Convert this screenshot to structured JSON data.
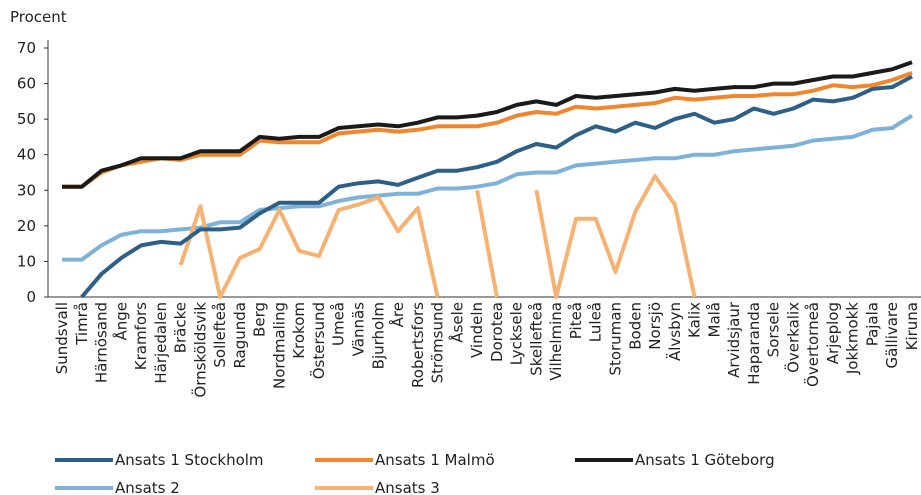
{
  "chart_data": {
    "type": "line",
    "y_label": "Procent",
    "categories": [
      "Sundsvall",
      "Timrå",
      "Härnösand",
      "Ånge",
      "Kramfors",
      "Härjedalen",
      "Bräcke",
      "Örnsköldsvik",
      "Sollefteå",
      "Ragunda",
      "Berg",
      "Nordmaling",
      "Krokom",
      "Östersund",
      "Umeå",
      "Vännäs",
      "Bjurholm",
      "Åre",
      "Robertsfors",
      "Strömsund",
      "Åsele",
      "Vindeln",
      "Dorotea",
      "Lycksele",
      "Skellefteå",
      "Vilhelmina",
      "Piteå",
      "Luleå",
      "Storuman",
      "Boden",
      "Norsjö",
      "Älvsbyn",
      "Kalix",
      "Malå",
      "Arvidsjaur",
      "Haparanda",
      "Sorsele",
      "Överkalix",
      "Övertorneå",
      "Arjeplog",
      "Jokkmokk",
      "Pajala",
      "Gällivare",
      "Kiruna"
    ],
    "series": [
      {
        "name": "Ansats 1 Stockholm",
        "color": "#2e5f86",
        "values": [
          null,
          0,
          6.5,
          11,
          14.5,
          15.5,
          15,
          19,
          19,
          19.5,
          23.5,
          26.5,
          26.5,
          26.5,
          31,
          32,
          32.5,
          31.5,
          33.5,
          35.5,
          35.5,
          36.5,
          38,
          41,
          43,
          42,
          45.5,
          48,
          46.5,
          49,
          47.5,
          50,
          51.5,
          49,
          50,
          53,
          51.5,
          53,
          55.5,
          55,
          56,
          58.5,
          59,
          62
        ]
      },
      {
        "name": "Ansats 1 Malmö",
        "color": "#f0862e",
        "values": [
          31,
          31,
          35,
          37,
          38,
          39,
          38.5,
          40,
          40,
          40,
          44,
          43.5,
          43.5,
          43.5,
          46,
          46.5,
          47,
          46.5,
          47,
          48,
          48,
          48,
          49,
          51,
          52,
          51.5,
          53.5,
          53,
          53.5,
          54,
          54.5,
          56,
          55.5,
          56,
          56.5,
          56.5,
          57,
          57,
          58,
          59.5,
          59,
          59.5,
          61,
          63
        ]
      },
      {
        "name": "Ansats 1 Göteborg",
        "color": "#1a1a1a",
        "values": [
          31,
          31,
          35.5,
          37,
          39,
          39,
          39,
          41,
          41,
          41,
          45,
          44.5,
          45,
          45,
          47.5,
          48,
          48.5,
          48,
          49,
          50.5,
          50.5,
          51,
          52,
          54,
          55,
          54,
          56.5,
          56,
          56.5,
          57,
          57.5,
          58.5,
          58,
          58.5,
          59,
          59,
          60,
          60,
          61,
          62,
          62,
          63,
          64,
          66
        ]
      },
      {
        "name": "Ansats 2",
        "color": "#7fb2d9",
        "values": [
          10.5,
          10.5,
          14.5,
          17.5,
          18.5,
          18.5,
          19,
          19.5,
          21,
          21,
          24.5,
          25,
          25.5,
          25.5,
          27,
          28,
          28.5,
          29,
          29,
          30.5,
          30.5,
          31,
          32,
          34.5,
          35,
          35,
          37,
          37.5,
          38,
          38.5,
          39,
          39,
          40,
          40,
          41,
          41.5,
          42,
          42.5,
          44,
          44.5,
          45,
          47,
          47.5,
          51
        ]
      },
      {
        "name": "Ansats 3",
        "color": "#f5b273",
        "values": [
          null,
          null,
          null,
          null,
          null,
          null,
          9,
          25.5,
          0,
          11,
          13.5,
          24.5,
          13,
          11.5,
          24.5,
          26,
          28,
          18.5,
          25,
          0,
          null,
          30,
          0,
          null,
          30,
          0,
          22,
          22,
          7,
          24,
          34,
          26,
          0,
          null,
          null,
          null,
          null,
          null,
          null,
          null,
          null,
          null,
          null,
          null
        ]
      }
    ],
    "ylim": [
      0,
      70
    ],
    "yticks": [
      0,
      10,
      20,
      30,
      40,
      50,
      60,
      70
    ],
    "grid": false
  }
}
